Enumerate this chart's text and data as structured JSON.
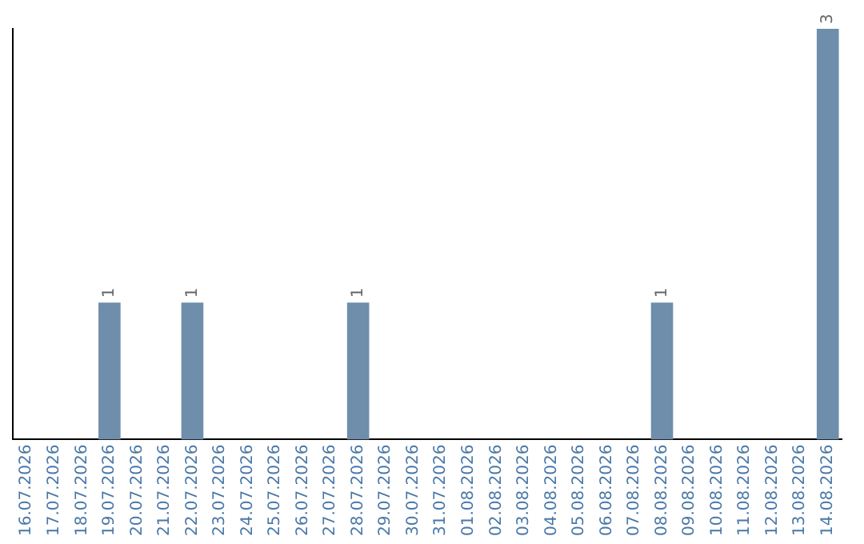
{
  "chart_data": {
    "type": "bar",
    "categories": [
      "16.07.2026",
      "17.07.2026",
      "18.07.2026",
      "19.07.2026",
      "20.07.2026",
      "21.07.2026",
      "22.07.2026",
      "23.07.2026",
      "24.07.2026",
      "25.07.2026",
      "26.07.2026",
      "27.07.2026",
      "28.07.2026",
      "29.07.2026",
      "30.07.2026",
      "31.07.2026",
      "01.08.2026",
      "02.08.2026",
      "03.08.2026",
      "04.08.2026",
      "05.08.2026",
      "06.08.2026",
      "07.08.2026",
      "08.08.2026",
      "09.08.2026",
      "10.08.2026",
      "11.08.2026",
      "12.08.2026",
      "13.08.2026",
      "14.08.2026"
    ],
    "values": [
      0,
      0,
      0,
      1,
      0,
      0,
      1,
      0,
      0,
      0,
      0,
      0,
      1,
      0,
      0,
      0,
      0,
      0,
      0,
      0,
      0,
      0,
      0,
      1,
      0,
      0,
      0,
      0,
      0,
      3
    ],
    "value_labels": [
      null,
      null,
      null,
      "1",
      null,
      null,
      "1",
      null,
      null,
      null,
      null,
      null,
      "1",
      null,
      null,
      null,
      null,
      null,
      null,
      null,
      null,
      null,
      null,
      "1",
      null,
      null,
      null,
      null,
      null,
      "3"
    ],
    "color": "#6e8eab",
    "tick_labels": "x",
    "grid": false,
    "legend": false
  }
}
